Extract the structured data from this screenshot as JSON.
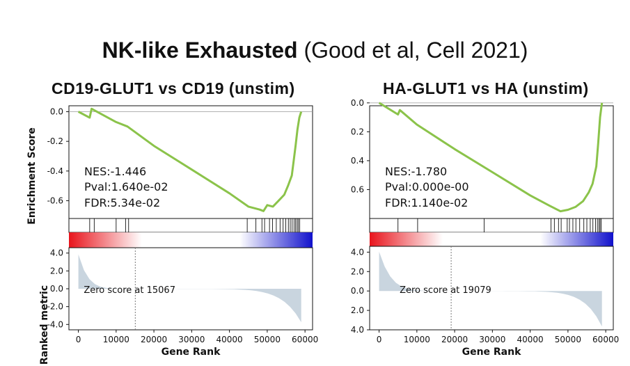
{
  "header": {
    "title_bold": "NK-like Exhausted",
    "title_rest": "(Good et al, Cell 2021)"
  },
  "colors": {
    "curve": "#8bc34a",
    "metric_fill": "#c9d5df",
    "grad_red": "#e8141c",
    "grad_blue": "#1111cc"
  },
  "chart_data": [
    {
      "type": "line",
      "title": "CD19-GLUT1 vs CD19 (unstim)",
      "ylabel_top": "Enrichment Score",
      "ylabel_bottom": "Ranked metric",
      "xlabel": "Gene Rank",
      "x_ticks": [
        "0",
        "10000",
        "20000",
        "30000",
        "40000",
        "50000",
        "60000"
      ],
      "es_ticks": [
        "0.0",
        "-0.2",
        "-0.4",
        "-0.6"
      ],
      "es_ylim": [
        0.04,
        -0.72
      ],
      "metric_ticks": [
        "4.0",
        "2.0",
        "0.0",
        "-2.0",
        "-4.0"
      ],
      "metric_ylim": [
        4.6,
        -4.6
      ],
      "xlim": [
        -2500,
        62000
      ],
      "stats": {
        "nes": "NES:-1.446",
        "pval": "Pval:1.640e-02",
        "fdr": "FDR:5.34e-02"
      },
      "zero_label": "Zero score at 15067",
      "zero_x": 15067,
      "gene_count": 59000,
      "metric_start": 3.8,
      "metric_end": -3.7,
      "es_x": [
        0,
        3000,
        3500,
        4200,
        10000,
        13000,
        20000,
        30000,
        40000,
        45000,
        46500,
        48000,
        49000,
        50000,
        51500,
        53000,
        54500,
        55500,
        56500,
        57000,
        57500,
        58000,
        58500,
        59000
      ],
      "es_y": [
        0.0,
        -0.04,
        0.02,
        0.01,
        -0.07,
        -0.1,
        -0.23,
        -0.39,
        -0.55,
        -0.64,
        -0.65,
        -0.66,
        -0.67,
        -0.63,
        -0.64,
        -0.6,
        -0.56,
        -0.5,
        -0.43,
        -0.33,
        -0.23,
        -0.12,
        -0.04,
        0.0
      ],
      "hits": [
        3000,
        4200,
        10000,
        12500,
        13300,
        44700,
        47000,
        48600,
        49300,
        50600,
        51400,
        52400,
        53400,
        54200,
        54900,
        55600,
        56100,
        56600,
        57100,
        57500,
        57900,
        58200,
        58600
      ]
    },
    {
      "type": "line",
      "title": "HA-GLUT1 vs HA (unstim)",
      "ylabel_top": "",
      "ylabel_bottom": "",
      "xlabel": "Gene Rank",
      "x_ticks": [
        "0",
        "10000",
        "20000",
        "30000",
        "40000",
        "50000",
        "60000"
      ],
      "es_ticks": [
        "0.0",
        "0.2",
        "0.4",
        "0.6"
      ],
      "es_ylim": [
        -0.02,
        -0.8
      ],
      "metric_ticks": [
        "4.0",
        "2.0",
        "0.0",
        "2.0",
        "4.0"
      ],
      "metric_ylim": [
        4.6,
        -4.0
      ],
      "xlim": [
        -2500,
        62000
      ],
      "stats": {
        "nes": "NES:-1.780",
        "pval": "Pval:0.000e-00",
        "fdr": "FDR:1.140e-02"
      },
      "zero_label": "Zero score at 19079",
      "zero_x": 19079,
      "gene_count": 59000,
      "metric_start": 4.0,
      "metric_end": -3.6,
      "es_x": [
        0,
        5000,
        5500,
        10000,
        20000,
        30000,
        40000,
        45000,
        48000,
        50000,
        52000,
        54000,
        55500,
        56500,
        57500,
        58000,
        58500,
        59000
      ],
      "es_y": [
        0.0,
        -0.08,
        -0.05,
        -0.15,
        -0.32,
        -0.48,
        -0.64,
        -0.71,
        -0.75,
        -0.74,
        -0.72,
        -0.68,
        -0.62,
        -0.56,
        -0.44,
        -0.28,
        -0.1,
        0.0
      ],
      "hits": [
        5000,
        10200,
        27800,
        45500,
        46400,
        47500,
        48200,
        49800,
        50400,
        51300,
        52100,
        53100,
        54200,
        55000,
        55900,
        56600,
        57300,
        57800,
        58200,
        58500,
        58800
      ]
    }
  ]
}
